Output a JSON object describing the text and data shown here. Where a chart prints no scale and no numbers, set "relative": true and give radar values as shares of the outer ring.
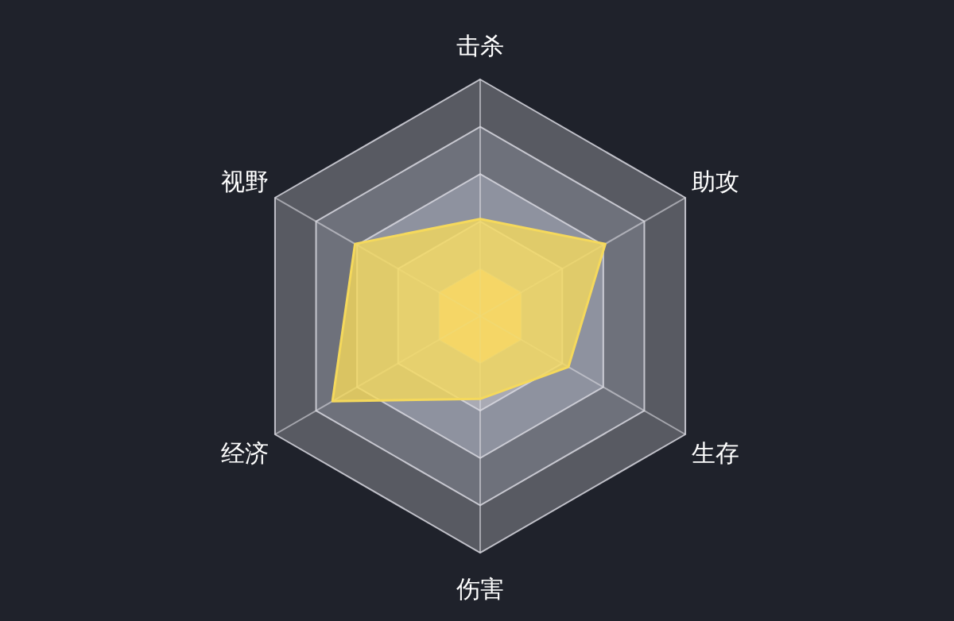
{
  "chart_data": {
    "type": "radar",
    "relative": true,
    "categories": [
      "击杀",
      "助攻",
      "生存",
      "伤害",
      "经济",
      "视野"
    ],
    "series": [
      {
        "color": "#f5d95c",
        "values": [
          0.41,
          0.61,
          0.43,
          0.35,
          0.72,
          0.61
        ]
      }
    ]
  }
}
